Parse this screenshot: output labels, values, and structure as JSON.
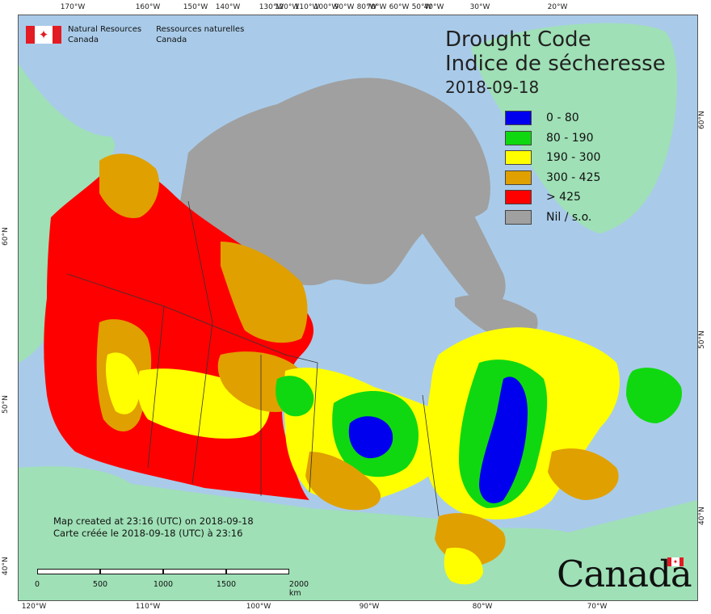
{
  "agency": {
    "name_en_line1": "Natural Resources",
    "name_en_line2": "Canada",
    "name_fr_line1": "Ressources naturelles",
    "name_fr_line2": "Canada"
  },
  "title": {
    "line1": "Drought Code",
    "line2": "Indice de sécheresse",
    "date": "2018-09-18"
  },
  "legend": [
    {
      "label": "0 - 80",
      "color": "#0000ee"
    },
    {
      "label": "80 - 190",
      "color": "#10d810"
    },
    {
      "label": "190 - 300",
      "color": "#ffff00"
    },
    {
      "label": "300 - 425",
      "color": "#e0a000"
    },
    {
      "label": "> 425",
      "color": "#ff0000"
    },
    {
      "label": "Nil / s.o.",
      "color": "#a0a0a0"
    }
  ],
  "credit": {
    "en": "Map created at 23:16 (UTC) on 2018-09-18",
    "fr": "Carte créée le 2018-09-18 (UTC) à 23:16"
  },
  "scale": {
    "labels": [
      "0",
      "500",
      "1000",
      "1500",
      "2000 km"
    ]
  },
  "graticule": {
    "top": [
      "170°W",
      "160°W",
      "150°W",
      "140°W",
      "130°W",
      "120°W",
      "110°W",
      "100°W",
      "90°W",
      "80°W",
      "70°W",
      "60°W",
      "50°W",
      "40°W",
      "30°W",
      "20°W"
    ],
    "bottom": [
      "120°W",
      "110°W",
      "100°W",
      "90°W",
      "80°W",
      "70°W"
    ],
    "left": [
      "60°N",
      "50°N",
      "40°N"
    ],
    "right": [
      "60°N",
      "50°N",
      "40°N"
    ]
  },
  "wordmark": "Canada",
  "colors": {
    "ocean": "#a9cbe9",
    "land_other": "#9fe0b6",
    "nil": "#a0a0a0"
  }
}
